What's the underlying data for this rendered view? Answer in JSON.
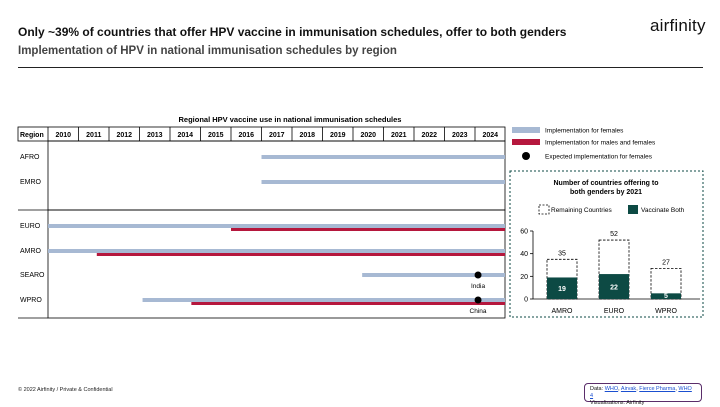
{
  "header": {
    "title": "Only ~39% of countries that offer HPV vaccine in immunisation schedules, offer to both genders",
    "subtitle": "Implementation of HPV in national immunisation schedules by region",
    "logo": "airfinity"
  },
  "footer": {
    "copyright": "© 2022 Airfinity / Private & Confidential",
    "source_prefix": "Data: ",
    "sources": [
      "WHO",
      "Airvak",
      "Fierce Pharma",
      "WHO 4"
    ],
    "visualisations": "Visualisations: Airfinity"
  },
  "colors": {
    "females": "#a7b9d3",
    "both": "#b5173d",
    "teal": "#0d4a44",
    "marker": "#000000"
  },
  "chart_data": [
    {
      "type": "timeline",
      "title": "Regional HPV vaccine use in national immunisation schedules",
      "row_header": "Region",
      "years": [
        "2010",
        "2011",
        "2012",
        "2013",
        "2014",
        "2015",
        "2016",
        "2017",
        "2018",
        "2019",
        "2020",
        "2021",
        "2022",
        "2023",
        "2024"
      ],
      "legend": [
        {
          "key": "females",
          "label": "Implementation for females"
        },
        {
          "key": "both",
          "label": "Implementation for males and females"
        },
        {
          "key": "expected",
          "label": "Expected implementation for females"
        }
      ],
      "rows": [
        {
          "region": "AFRO",
          "group": 1,
          "females_start": 2017.0,
          "both_start": null,
          "expected": null
        },
        {
          "region": "EMRO",
          "group": 1,
          "females_start": 2017.0,
          "both_start": null,
          "expected": null
        },
        {
          "region": "EURO",
          "group": 2,
          "females_start": 2010.0,
          "both_start": 2016.0,
          "expected": null
        },
        {
          "region": "AMRO",
          "group": 2,
          "females_start": 2010.0,
          "both_start": 2011.6,
          "expected": null
        },
        {
          "region": "SEARO",
          "group": 2,
          "females_start": 2020.3,
          "both_start": null,
          "expected": {
            "year": 2024.1,
            "label": "India"
          }
        },
        {
          "region": "WPRO",
          "group": 2,
          "females_start": 2013.1,
          "both_start": 2014.7,
          "expected": {
            "year": 2024.1,
            "label": "China"
          }
        }
      ],
      "x_end": 2025
    },
    {
      "type": "bar",
      "title": "Number of countries offering to both genders by 2021",
      "legend": [
        "Remaining Countries",
        "Vaccinate Both"
      ],
      "categories": [
        "AMRO",
        "EURO",
        "WPRO"
      ],
      "series": [
        {
          "name": "Vaccinate Both",
          "values": [
            19,
            22,
            5
          ]
        },
        {
          "name": "Total",
          "values": [
            35,
            52,
            27
          ]
        }
      ],
      "ylim": [
        0,
        60
      ],
      "yticks": [
        0,
        20,
        40,
        60
      ]
    }
  ]
}
